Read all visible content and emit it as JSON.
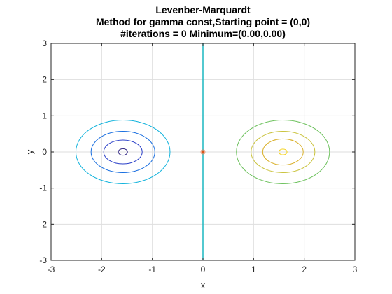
{
  "chart_data": {
    "type": "contour",
    "title": [
      "Levenber-Marquardt",
      "Method for gamma const,Starting point = (0,0)",
      "#iterations = 0 Minimum=(0.00,0.00)"
    ],
    "xlabel": "x",
    "ylabel": "y",
    "xlim": [
      -3,
      3
    ],
    "ylim": [
      -3,
      3
    ],
    "xticks": [
      -3,
      -2,
      -1,
      0,
      1,
      2,
      3
    ],
    "yticks": [
      -3,
      -2,
      -1,
      0,
      1,
      2,
      3
    ],
    "grid": true,
    "contours": [
      {
        "cx": -1.58,
        "cy": 0,
        "rx": 0.09,
        "ry": 0.09,
        "color": "#352a87"
      },
      {
        "cx": -1.58,
        "cy": 0,
        "rx": 0.38,
        "ry": 0.33,
        "color": "#2a3fc8"
      },
      {
        "cx": -1.58,
        "cy": 0,
        "rx": 0.63,
        "ry": 0.57,
        "color": "#1a6fe0"
      },
      {
        "cx": -1.58,
        "cy": 0,
        "rx": 0.93,
        "ry": 0.88,
        "color": "#12b3dc"
      },
      {
        "cx": 1.58,
        "cy": 0,
        "rx": 0.08,
        "ry": 0.08,
        "color": "#f4d21c"
      },
      {
        "cx": 1.58,
        "cy": 0,
        "rx": 0.4,
        "ry": 0.36,
        "color": "#d9b02a"
      },
      {
        "cx": 1.58,
        "cy": 0,
        "rx": 0.63,
        "ry": 0.57,
        "color": "#c9c23a"
      },
      {
        "cx": 1.58,
        "cy": 0,
        "rx": 0.92,
        "ry": 0.88,
        "color": "#6cc15c"
      }
    ],
    "vertical_line": {
      "x": 0,
      "color": "#1ab7c0"
    },
    "marker": {
      "x": 0,
      "y": 0,
      "symbol": "asterisk",
      "color": "#d95319"
    }
  }
}
